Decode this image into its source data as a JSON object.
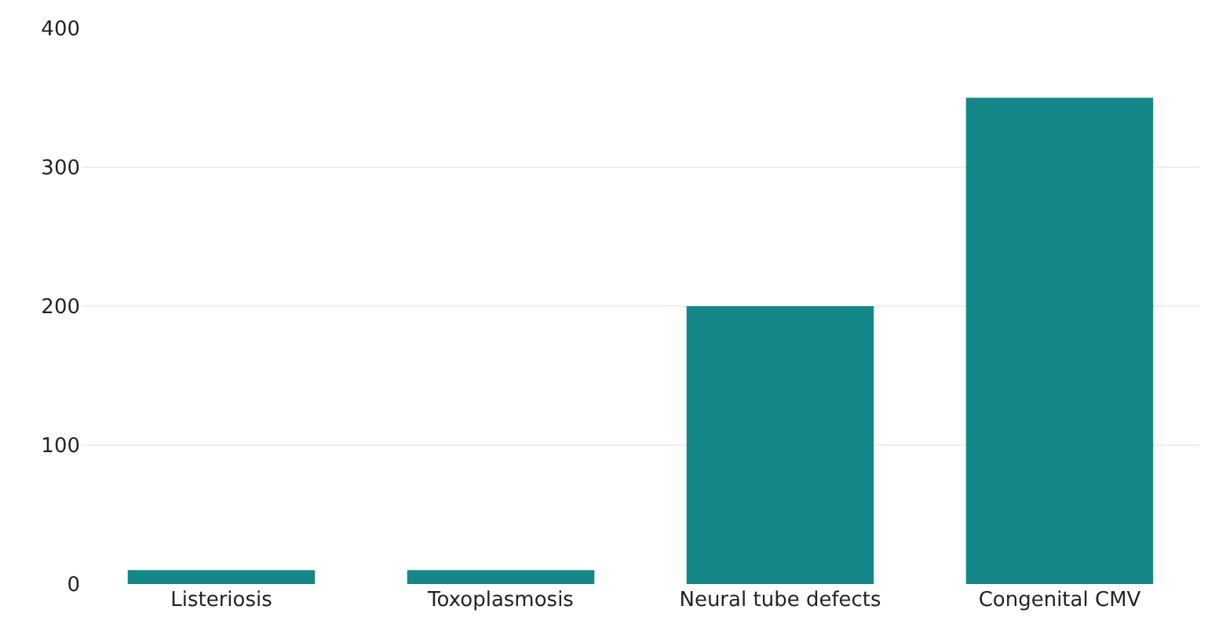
{
  "chart_data": {
    "type": "bar",
    "categories": [
      "Listeriosis",
      "Toxoplasmosis",
      "Neural tube defects",
      "Congenital CMV"
    ],
    "values": [
      10,
      10,
      200,
      350
    ],
    "color": "#158789",
    "ylim": [
      0,
      400
    ],
    "yticks": [
      0,
      100,
      200,
      300,
      400
    ],
    "grid": "y"
  }
}
